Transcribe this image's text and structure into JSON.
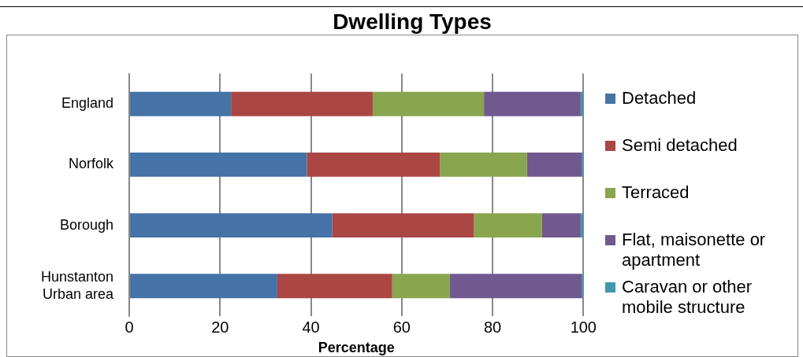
{
  "chart_data": {
    "type": "bar",
    "orientation": "horizontal",
    "stacked": true,
    "title": "Dwelling Types",
    "xlabel": "Percentage",
    "categories": [
      "England",
      "Norfolk",
      "Borough",
      "Hunstanton Urban area"
    ],
    "series": [
      {
        "name": "Detached",
        "color": "#4572a7",
        "values": [
          22.4,
          39.1,
          44.7,
          32.6
        ]
      },
      {
        "name": "Semi detached",
        "color": "#aa4643",
        "values": [
          31.2,
          29.3,
          31.2,
          25.3
        ]
      },
      {
        "name": "Terraced",
        "color": "#89a54e",
        "values": [
          24.5,
          19.2,
          15.0,
          12.7
        ]
      },
      {
        "name": "Flat, maisonette or apartment",
        "color": "#71588f",
        "values": [
          21.3,
          12.0,
          8.5,
          29.0
        ]
      },
      {
        "name": "Caravan or other mobile structure",
        "color": "#4198af",
        "values": [
          0.6,
          0.4,
          0.6,
          0.4
        ]
      }
    ],
    "xlim": [
      0,
      100
    ],
    "xticks": [
      0,
      20,
      40,
      60,
      80,
      100
    ],
    "grid": "x",
    "legend": "right"
  }
}
